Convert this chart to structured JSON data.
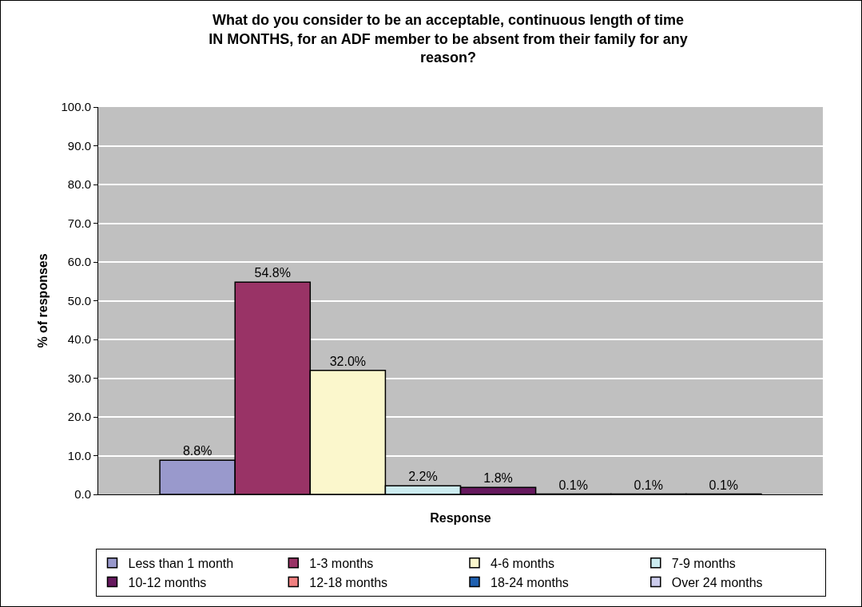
{
  "chart_data": {
    "type": "bar",
    "title": "What do you consider to be an acceptable, continuous length of time\nIN MONTHS, for an ADF member to be absent from their family for any\nreason?",
    "xlabel": "Response",
    "ylabel": "% of responses",
    "categories": [
      null
    ],
    "series": [
      {
        "name": "Less than 1 month",
        "color": "#9999cc",
        "values": [
          8.8
        ],
        "value_labels": [
          "8.8%"
        ]
      },
      {
        "name": "1-3 months",
        "color": "#993366",
        "values": [
          54.8
        ],
        "value_labels": [
          "54.8%"
        ]
      },
      {
        "name": "4-6 months",
        "color": "#fbf7cc",
        "values": [
          32.0
        ],
        "value_labels": [
          "32.0%"
        ]
      },
      {
        "name": "7-9 months",
        "color": "#ccecf0",
        "values": [
          2.2
        ],
        "value_labels": [
          "2.2%"
        ]
      },
      {
        "name": "10-12 months",
        "color": "#66195e",
        "values": [
          1.8
        ],
        "value_labels": [
          "1.8%"
        ]
      },
      {
        "name": "12-18 months",
        "color": "#f08080",
        "values": [
          0.1
        ],
        "value_labels": [
          "0.1%"
        ]
      },
      {
        "name": "18-24 months",
        "color": "#1f60b0",
        "values": [
          0.1
        ],
        "value_labels": [
          "0.1%"
        ]
      },
      {
        "name": "Over 24 months",
        "color": "#ccccec",
        "values": [
          0.1
        ],
        "value_labels": [
          "0.1%"
        ]
      }
    ],
    "ylim": [
      0,
      100
    ],
    "yticks": [
      {
        "value": 0,
        "label": "0.0"
      },
      {
        "value": 10,
        "label": "10.0"
      },
      {
        "value": 20,
        "label": "20.0"
      },
      {
        "value": 30,
        "label": "30.0"
      },
      {
        "value": 40,
        "label": "40.0"
      },
      {
        "value": 50,
        "label": "50.0"
      },
      {
        "value": 60,
        "label": "60.0"
      },
      {
        "value": 70,
        "label": "70.0"
      },
      {
        "value": 80,
        "label": "80.0"
      },
      {
        "value": 90,
        "label": "90.0"
      },
      {
        "value": 100,
        "label": "100.0"
      }
    ],
    "grid": "y",
    "legend": "bottom"
  }
}
